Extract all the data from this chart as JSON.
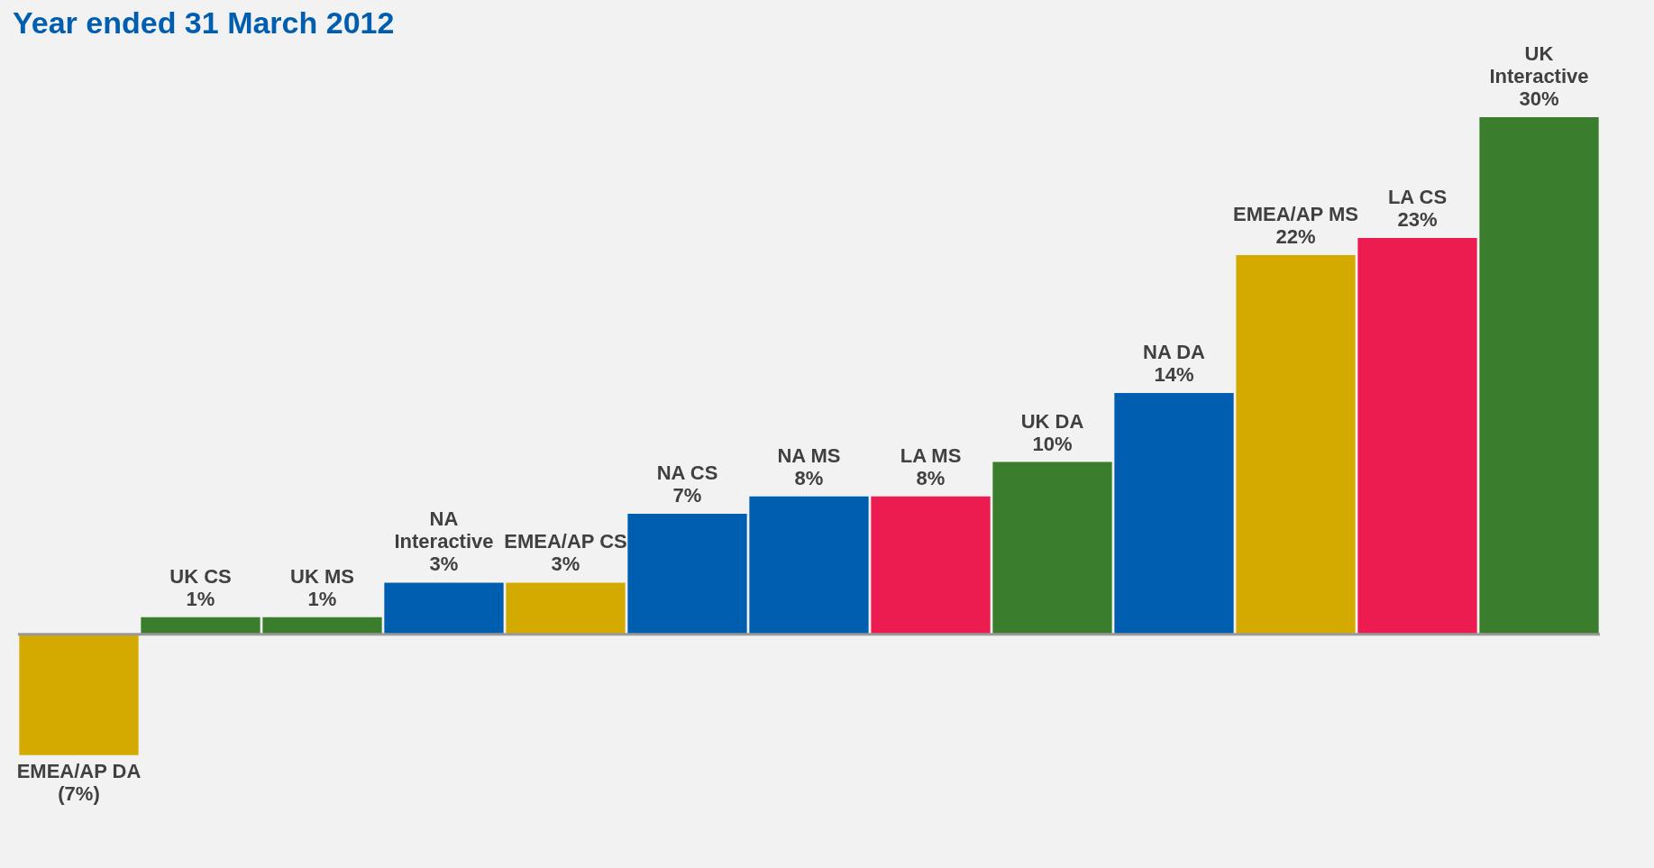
{
  "chart_data": {
    "type": "bar",
    "title": "Year ended 31 March 2012",
    "categories": [
      "EMEA/AP DA",
      "UK CS",
      "UK MS",
      "NA Interactive",
      "EMEA/AP CS",
      "NA CS",
      "NA MS",
      "LA MS",
      "UK DA",
      "NA DA",
      "EMEA/AP MS",
      "LA CS",
      "UK Interactive"
    ],
    "values": [
      -7,
      1,
      1,
      3,
      3,
      7,
      8,
      8,
      10,
      14,
      22,
      23,
      30
    ],
    "value_labels": [
      "(7%)",
      "1%",
      "1%",
      "3%",
      "3%",
      "7%",
      "8%",
      "8%",
      "10%",
      "14%",
      "22%",
      "23%",
      "30%"
    ],
    "colors": [
      "#d4aa00",
      "#3a7d2c",
      "#3a7d2c",
      "#005eb0",
      "#d4aa00",
      "#005eb0",
      "#005eb0",
      "#ed1c50",
      "#3a7d2c",
      "#005eb0",
      "#d4aa00",
      "#ed1c50",
      "#3a7d2c"
    ],
    "legend": false
  }
}
